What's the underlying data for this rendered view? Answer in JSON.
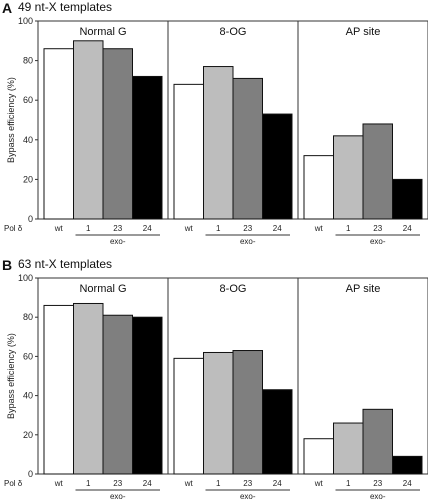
{
  "chart_data": [
    {
      "type": "bar",
      "panel": "A",
      "title": "49 nt-X templates",
      "ylabel": "Bypass efficiency (%)",
      "ylim": [
        0,
        100
      ],
      "yticks": [
        "0",
        "20",
        "40",
        "60",
        "80",
        "100"
      ],
      "groups": [
        "Normal G",
        "8-OG",
        "AP site"
      ],
      "categories": [
        "wt",
        "1",
        "23",
        "24"
      ],
      "row_label": "Pol δ",
      "exo_label": "exo-",
      "colors": [
        "#ffffff",
        "#bdbdbd",
        "#7f7f7f",
        "#000000"
      ],
      "values": [
        [
          86,
          90,
          86,
          72
        ],
        [
          68,
          77,
          71,
          53
        ],
        [
          32,
          42,
          48,
          20
        ]
      ]
    },
    {
      "type": "bar",
      "panel": "B",
      "title": "63 nt-X templates",
      "ylabel": "Bypass efficiency (%)",
      "ylim": [
        0,
        100
      ],
      "yticks": [
        "0",
        "20",
        "40",
        "60",
        "80",
        "100"
      ],
      "groups": [
        "Normal G",
        "8-OG",
        "AP site"
      ],
      "categories": [
        "wt",
        "1",
        "23",
        "24"
      ],
      "row_label": "Pol δ",
      "exo_label": "exo-",
      "colors": [
        "#ffffff",
        "#bdbdbd",
        "#7f7f7f",
        "#000000"
      ],
      "values": [
        [
          86,
          87,
          81,
          80
        ],
        [
          59,
          62,
          63,
          43
        ],
        [
          18,
          26,
          33,
          9
        ]
      ]
    }
  ]
}
